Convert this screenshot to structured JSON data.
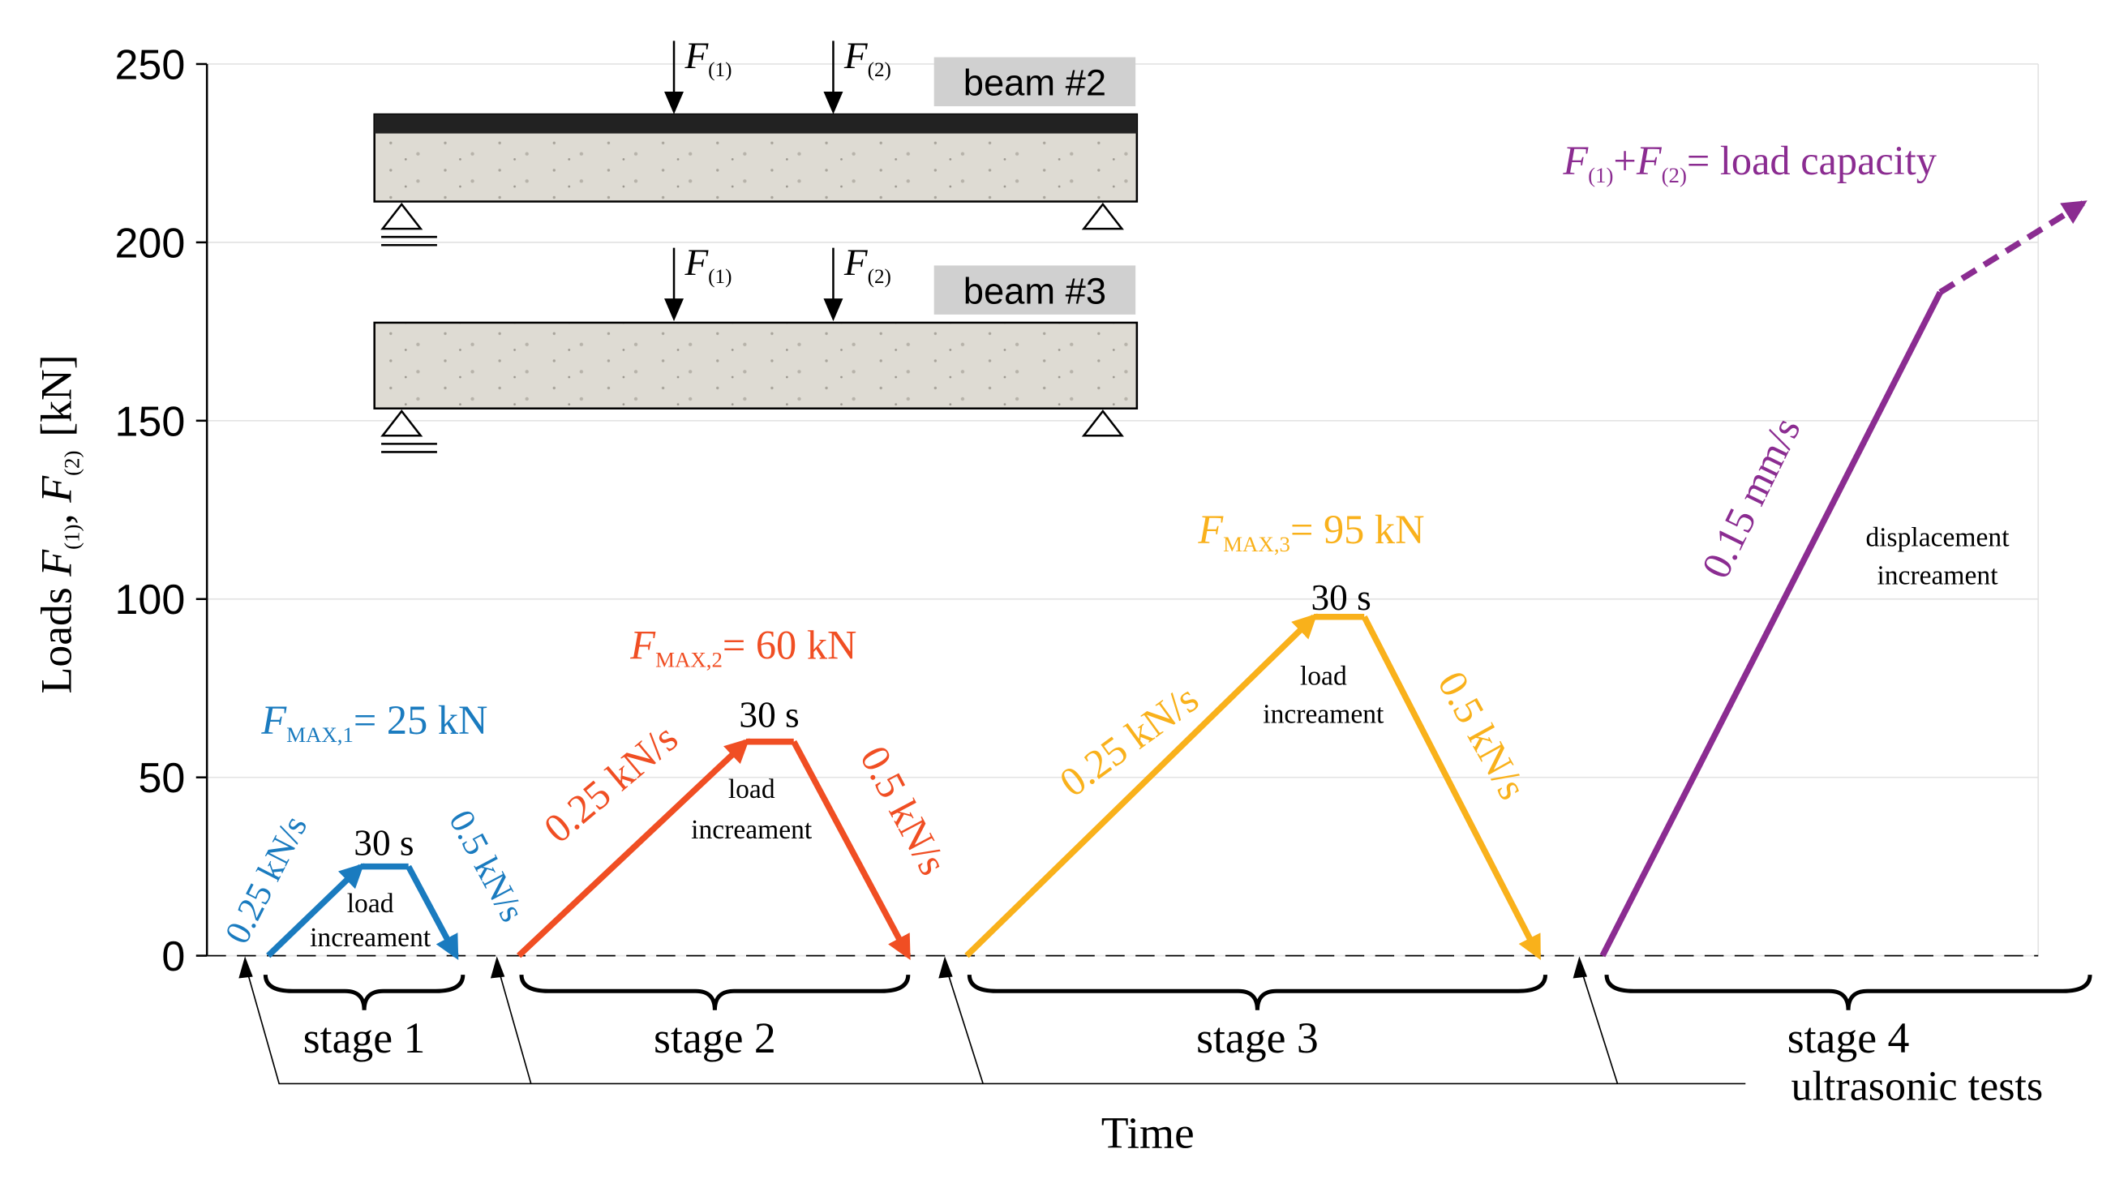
{
  "chart_data": {
    "type": "line",
    "ylabel": {
      "pre": "Loads ",
      "f1": "F",
      "s1": "(1)",
      "sep": ", ",
      "f2": "F",
      "s2": "(2)",
      "unit": "[kN]"
    },
    "xlabel": "Time",
    "ylim": [
      0,
      250
    ],
    "yticks": [
      0,
      50,
      100,
      150,
      200,
      250
    ],
    "grid": true,
    "series": [
      {
        "name": "stage 1",
        "color": "#1a7bbf",
        "values": [
          0,
          25,
          25,
          0
        ]
      },
      {
        "name": "stage 2",
        "color": "#f04e23",
        "values": [
          0,
          60,
          60,
          0
        ]
      },
      {
        "name": "stage 3",
        "color": "#f9b11b",
        "values": [
          0,
          95,
          95,
          0
        ]
      },
      {
        "name": "stage 4",
        "color": "#8b2c91",
        "values": [
          0,
          186,
          211
        ],
        "dashed_last_segment": true
      }
    ],
    "fmax": [
      {
        "f": "F",
        "sub": "MAX,1",
        "text": "= 25 kN"
      },
      {
        "f": "F",
        "sub": "MAX,2",
        "text": "= 60 kN"
      },
      {
        "f": "F",
        "sub": "MAX,3",
        "text": "= 95 kN"
      }
    ],
    "rate_up": "0.25 kN/s",
    "rate_down": "0.5 kN/s",
    "hold": "30 s",
    "load_inc": [
      "load",
      "increament"
    ],
    "disp_inc": [
      "displacement",
      "increament"
    ],
    "rate_disp": "0.15 mm/s",
    "capacity": {
      "f1": "F",
      "s1": "(1)",
      "plus": "+",
      "f2": "F",
      "s2": "(2)",
      "text": "= load capacity"
    },
    "ultrasonic": "ultrasonic tests",
    "beams": [
      {
        "label": "beam #2",
        "forces": [
          {
            "f": "F",
            "sub": "(1)"
          },
          {
            "f": "F",
            "sub": "(2)"
          }
        ]
      },
      {
        "label": "beam #3",
        "forces": [
          {
            "f": "F",
            "sub": "(1)"
          },
          {
            "f": "F",
            "sub": "(2)"
          }
        ]
      }
    ]
  }
}
